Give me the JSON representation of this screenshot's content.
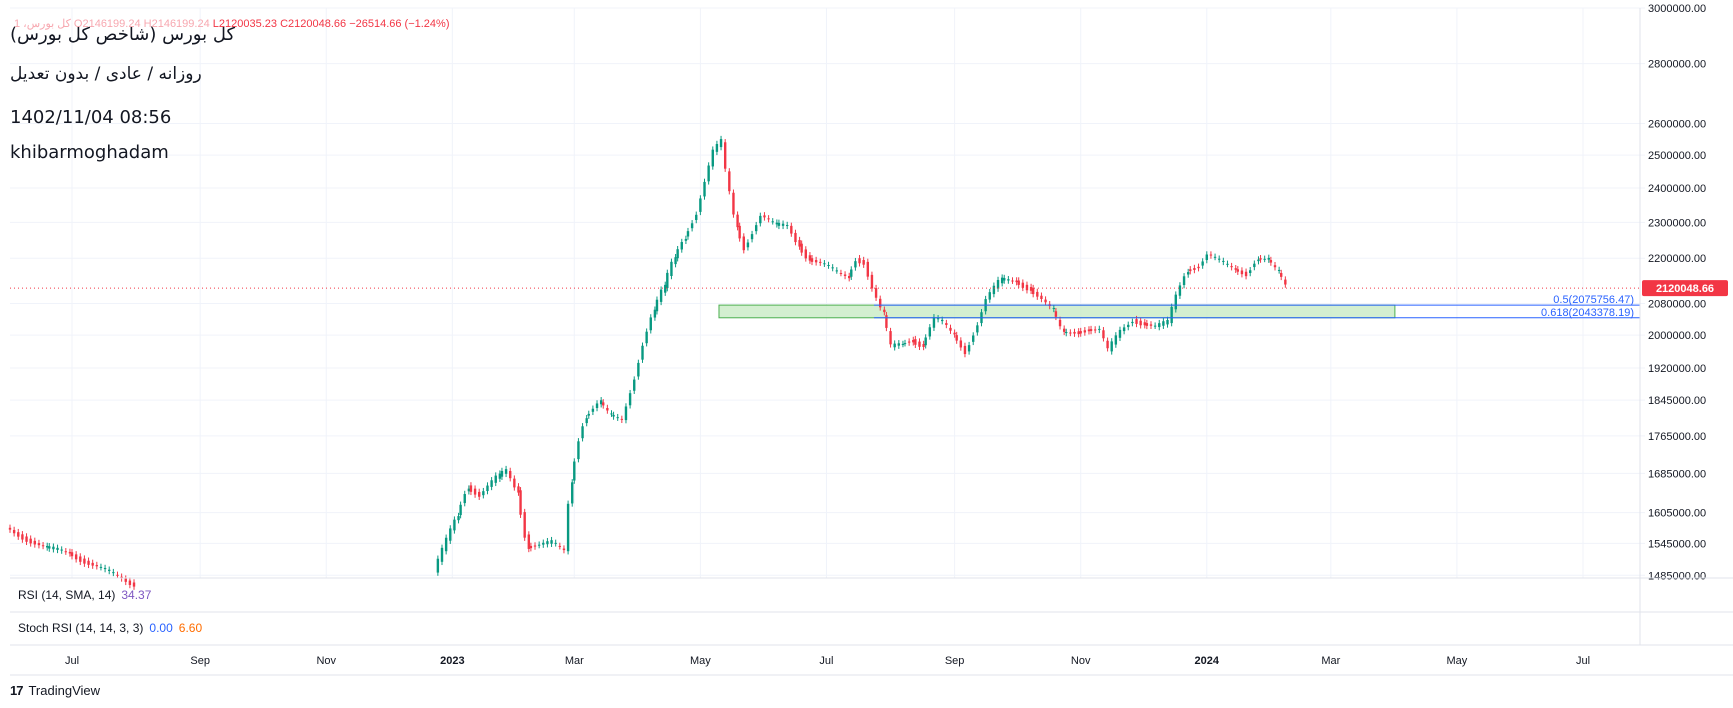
{
  "header": {
    "title_line1": "کل بورس (شاخص کل بورس)",
    "title_line2": "روزانه / عادی / بدون تعدیل",
    "title_line3": "1402/11/04 08:56",
    "title_line4": "khibarmoghadam",
    "ohlc_prefix": "کل بورس، 1",
    "ohlc_o": "O2146199.24",
    "ohlc_h": "H2146199.24",
    "ohlc_l": "L2120035.23",
    "ohlc_c": "C2120048.66",
    "ohlc_change": "−26514.66 (−1.24%)"
  },
  "indicators": {
    "rsi_label": "RSI (14, SMA, 14)",
    "rsi_value": "34.37",
    "stoch_label": "Stoch RSI (14, 14, 3, 3)",
    "stoch_k": "0.00",
    "stoch_d": "6.60"
  },
  "footer": {
    "brand": "TradingView",
    "logo": "17"
  },
  "colors": {
    "up": "#089981",
    "down": "#f23645",
    "fib_line": "#2962ff",
    "zone_fill": "#c8ebc4",
    "grid": "#f0f3fa",
    "last_price": "#f23645"
  },
  "chart_data": {
    "type": "candlestick",
    "y_scale": "log",
    "ylim": [
      1480000,
      3000000
    ],
    "ytick_values": [
      3000000,
      2800000,
      2600000,
      2500000,
      2400000,
      2300000,
      2200000,
      2080000,
      2000000,
      1920000,
      1845000,
      1765000,
      1685000,
      1605000,
      1545000,
      1485000
    ],
    "ytick_labels": [
      "3000000.00",
      "2800000.00",
      "2600000.00",
      "2500000.00",
      "2400000.00",
      "2300000.00",
      "2200000.00",
      "2080000.00",
      "2000000.00",
      "1920000.00",
      "1845000.00",
      "1765000.00",
      "1685000.00",
      "1605000.00",
      "1545000.00",
      "1485000.00"
    ],
    "x_labels": [
      "Jul",
      "Sep",
      "Nov",
      "2023",
      "Mar",
      "May",
      "Jul",
      "Sep",
      "Nov",
      "2024",
      "Mar",
      "May",
      "Jul"
    ],
    "x_label_months": [
      "2022-07",
      "2022-09",
      "2022-11",
      "2023-01",
      "2023-03",
      "2023-05",
      "2023-07",
      "2023-09",
      "2023-11",
      "2024-01",
      "2024-03",
      "2024-05",
      "2024-07"
    ],
    "x_range": [
      "2022-06-01",
      "2024-07-31"
    ],
    "last_price": 2120048.66,
    "last_price_label": "2120048.66",
    "fib_levels": [
      {
        "label": "0.5(2075756.47)",
        "value": 2075756.47
      },
      {
        "label": "0.618(2043378.19)",
        "value": 2043378.19
      }
    ],
    "zone": {
      "from": "2023-05-10",
      "to": "2024-04-01",
      "low": 2043378.19,
      "high": 2075756.47
    },
    "series_anchors": [
      [
        "2022-06-01",
        1575000
      ],
      [
        "2022-06-20",
        1535000
      ],
      [
        "2022-07-01",
        1528000
      ],
      [
        "2022-07-15",
        1500000
      ],
      [
        "2022-08-01",
        1470000
      ],
      [
        "2022-12-25",
        1490000
      ],
      [
        "2023-01-05",
        1600000
      ],
      [
        "2023-01-10",
        1660000
      ],
      [
        "2023-01-16",
        1640000
      ],
      [
        "2023-01-25",
        1678000
      ],
      [
        "2023-01-29",
        1690000
      ],
      [
        "2023-02-03",
        1650000
      ],
      [
        "2023-02-08",
        1540000
      ],
      [
        "2023-02-20",
        1545000
      ],
      [
        "2023-02-26",
        1530000
      ],
      [
        "2023-03-01",
        1670000
      ],
      [
        "2023-03-05",
        1760000
      ],
      [
        "2023-03-08",
        1810000
      ],
      [
        "2023-03-15",
        1840000
      ],
      [
        "2023-03-20",
        1808000
      ],
      [
        "2023-03-26",
        1800000
      ],
      [
        "2023-04-01",
        1900000
      ],
      [
        "2023-04-05",
        1980000
      ],
      [
        "2023-04-10",
        2060000
      ],
      [
        "2023-04-15",
        2120000
      ],
      [
        "2023-04-20",
        2200000
      ],
      [
        "2023-04-25",
        2260000
      ],
      [
        "2023-05-01",
        2330000
      ],
      [
        "2023-05-05",
        2420000
      ],
      [
        "2023-05-09",
        2510000
      ],
      [
        "2023-05-13",
        2540000
      ],
      [
        "2023-05-15",
        2450000
      ],
      [
        "2023-05-20",
        2290000
      ],
      [
        "2023-05-24",
        2230000
      ],
      [
        "2023-06-01",
        2320000
      ],
      [
        "2023-06-08",
        2290000
      ],
      [
        "2023-06-14",
        2290000
      ],
      [
        "2023-06-19",
        2240000
      ],
      [
        "2023-06-24",
        2200000
      ],
      [
        "2023-07-02",
        2180000
      ],
      [
        "2023-07-08",
        2160000
      ],
      [
        "2023-07-13",
        2150000
      ],
      [
        "2023-07-17",
        2200000
      ],
      [
        "2023-07-21",
        2190000
      ],
      [
        "2023-07-25",
        2120000
      ],
      [
        "2023-07-30",
        2050000
      ],
      [
        "2023-08-03",
        1970000
      ],
      [
        "2023-08-08",
        1980000
      ],
      [
        "2023-08-13",
        1990000
      ],
      [
        "2023-08-18",
        1975000
      ],
      [
        "2023-08-24",
        2040000
      ],
      [
        "2023-08-28",
        2030000
      ],
      [
        "2023-09-02",
        2000000
      ],
      [
        "2023-09-08",
        1960000
      ],
      [
        "2023-09-14",
        2030000
      ],
      [
        "2023-09-18",
        2090000
      ],
      [
        "2023-09-25",
        2140000
      ],
      [
        "2023-10-02",
        2140000
      ],
      [
        "2023-10-09",
        2120000
      ],
      [
        "2023-10-15",
        2090000
      ],
      [
        "2023-10-20",
        2060000
      ],
      [
        "2023-10-25",
        2005000
      ],
      [
        "2023-11-01",
        2010000
      ],
      [
        "2023-11-06",
        2015000
      ],
      [
        "2023-11-12",
        2012000
      ],
      [
        "2023-11-16",
        1960000
      ],
      [
        "2023-11-22",
        2010000
      ],
      [
        "2023-11-28",
        2040000
      ],
      [
        "2023-12-03",
        2030000
      ],
      [
        "2023-12-09",
        2020000
      ],
      [
        "2023-12-15",
        2030000
      ],
      [
        "2023-12-19",
        2100000
      ],
      [
        "2023-12-24",
        2170000
      ],
      [
        "2023-12-30",
        2180000
      ],
      [
        "2024-01-03",
        2210000
      ],
      [
        "2024-01-09",
        2190000
      ],
      [
        "2024-01-16",
        2170000
      ],
      [
        "2024-01-22",
        2160000
      ],
      [
        "2024-01-27",
        2200000
      ],
      [
        "2024-02-01",
        2195000
      ],
      [
        "2024-02-06",
        2160000
      ],
      [
        "2024-02-10",
        2125000
      ]
    ]
  }
}
